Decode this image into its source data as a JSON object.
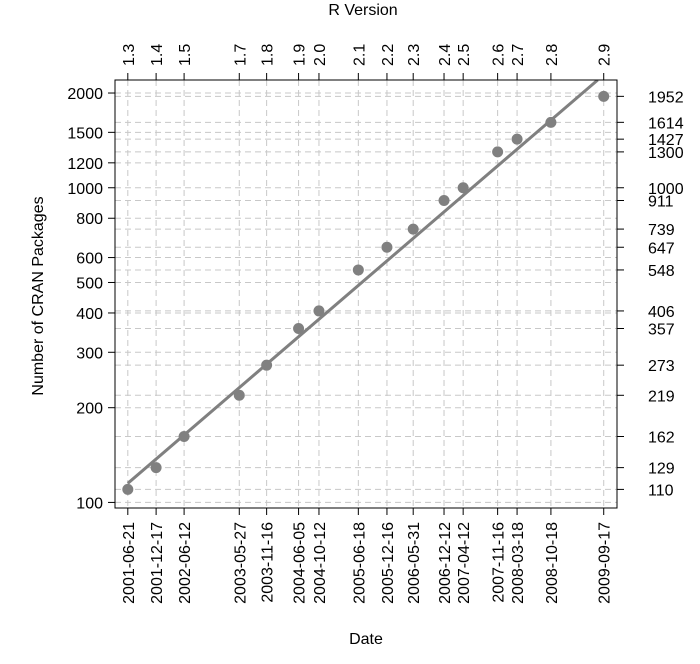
{
  "chart_data": {
    "type": "scatter",
    "title": "",
    "xlabel": "Date",
    "ylabel": "Number of CRAN Packages",
    "top_axis_label": "R Version",
    "y_scale": "log",
    "ylim": [
      96,
      2200
    ],
    "xlim": [
      "2001-04-01",
      "2009-12-10"
    ],
    "grid": true,
    "point_color": "#808080",
    "line_color": "#808080",
    "grid_color": "#c8c8c8",
    "points": [
      {
        "date": "2001-06-21",
        "version": "1.3",
        "packages": 110
      },
      {
        "date": "2001-12-17",
        "version": "1.4",
        "packages": 129
      },
      {
        "date": "2002-06-12",
        "version": "1.5",
        "packages": 162
      },
      {
        "date": "2003-05-27",
        "version": "1.7",
        "packages": 219
      },
      {
        "date": "2003-11-16",
        "version": "1.8",
        "packages": 273
      },
      {
        "date": "2004-06-05",
        "version": "1.9",
        "packages": 357
      },
      {
        "date": "2004-10-12",
        "version": "2.0",
        "packages": 406
      },
      {
        "date": "2005-06-18",
        "version": "2.1",
        "packages": 548
      },
      {
        "date": "2005-12-16",
        "version": "2.2",
        "packages": 647
      },
      {
        "date": "2006-05-31",
        "version": "2.3",
        "packages": 739
      },
      {
        "date": "2006-12-12",
        "version": "2.4",
        "packages": 911
      },
      {
        "date": "2007-04-12",
        "version": "2.5",
        "packages": 1000
      },
      {
        "date": "2007-11-16",
        "version": "2.6",
        "packages": 1300
      },
      {
        "date": "2008-03-18",
        "version": "2.7",
        "packages": 1427
      },
      {
        "date": "2008-10-18",
        "version": "2.8",
        "packages": 1614
      },
      {
        "date": "2009-09-17",
        "version": "2.9",
        "packages": 1952
      }
    ],
    "left_ticks": [
      100,
      200,
      300,
      400,
      500,
      600,
      800,
      1000,
      1200,
      1500,
      2000
    ],
    "trend_line": {
      "type": "exponential fit",
      "start": {
        "date": "2001-06-21",
        "packages": 115
      },
      "end": {
        "date": "2009-08-10",
        "packages": 2200
      }
    }
  }
}
